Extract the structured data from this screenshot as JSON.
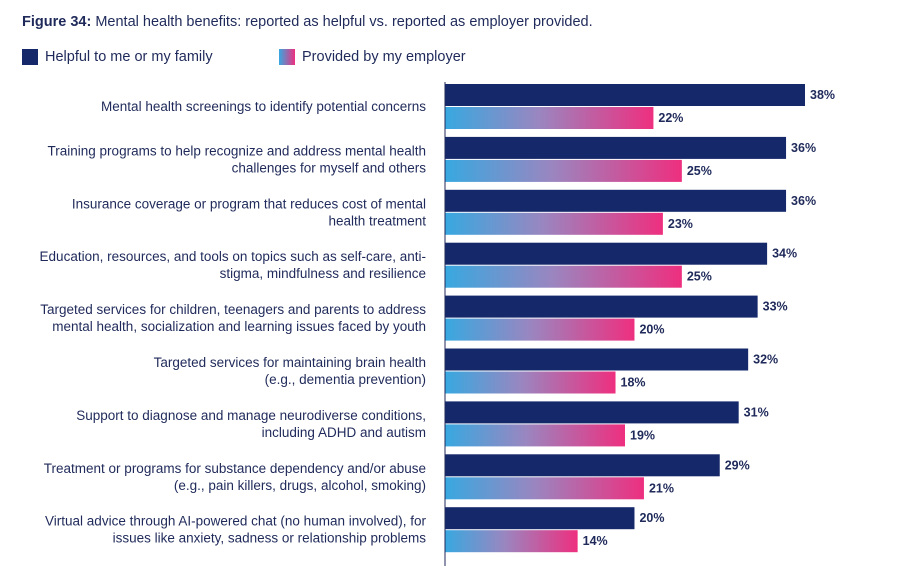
{
  "figure": {
    "label": "Figure 34:",
    "title": "Mental health benefits: reported as helpful vs. reported as employer provided."
  },
  "legend": [
    {
      "label": "Helpful to me or my family",
      "style": "solid",
      "color": "#15286a"
    },
    {
      "label": "Provided by my employer",
      "style": "gradient",
      "color_start": "#38a8e0",
      "color_end": "#ee2f7f"
    }
  ],
  "chart_data": {
    "type": "bar",
    "orientation": "horizontal",
    "unit": "%",
    "xlim": [
      0,
      38
    ],
    "categories": [
      [
        "Mental health screenings to identify potential concerns"
      ],
      [
        "Training programs to help recognize and address mental health",
        "challenges for myself and others"
      ],
      [
        "Insurance coverage or program that reduces cost of mental",
        "health treatment"
      ],
      [
        "Education, resources, and tools on topics such as self-care, anti-",
        "stigma, mindfulness and resilience"
      ],
      [
        "Targeted services for children, teenagers and parents to address",
        "mental health, socialization and learning issues faced by youth"
      ],
      [
        "Targeted services for maintaining brain health",
        "(e.g., dementia prevention)"
      ],
      [
        "Support to diagnose and manage neurodiverse conditions,",
        "including ADHD and autism"
      ],
      [
        "Treatment or programs for substance dependency and/or abuse",
        "(e.g., pain killers, drugs, alcohol, smoking)"
      ],
      [
        "Virtual advice through AI-powered chat (no human involved), for",
        "issues like anxiety, sadness or relationship problems"
      ]
    ],
    "series": [
      {
        "name": "Helpful to me or my family",
        "values": [
          38,
          36,
          36,
          34,
          33,
          32,
          31,
          29,
          20
        ],
        "labels": [
          "38%",
          "36%",
          "36%",
          "34%",
          "33%",
          "32%",
          "31%",
          "29%",
          "20%"
        ]
      },
      {
        "name": "Provided by my employer",
        "values": [
          22,
          25,
          23,
          25,
          20,
          18,
          19,
          21,
          14
        ],
        "labels": [
          "22%",
          "25%",
          "23%",
          "25%",
          "20%",
          "18%",
          "19%",
          "21%",
          "14%"
        ]
      }
    ]
  }
}
